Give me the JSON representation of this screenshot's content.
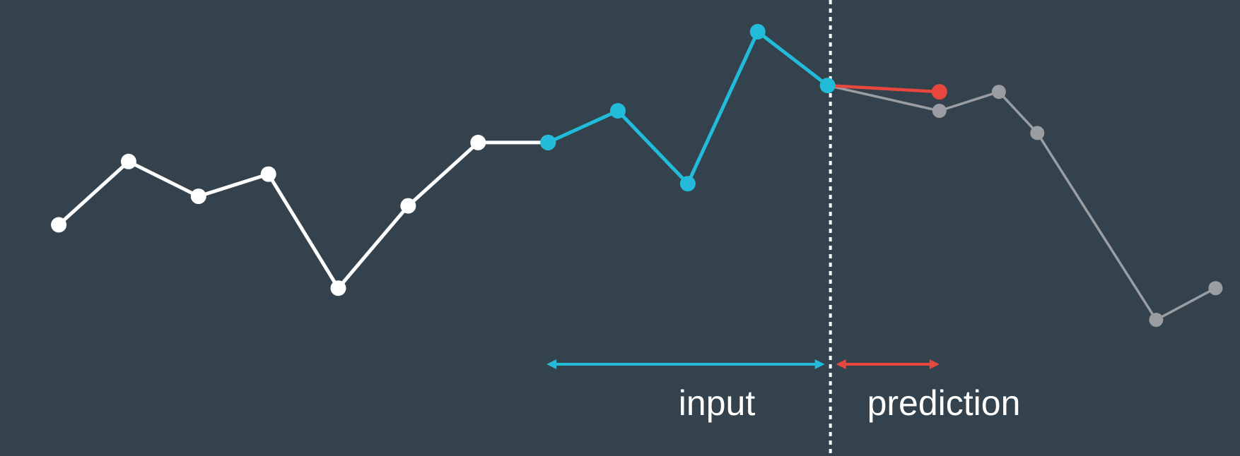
{
  "labels": {
    "input": "input",
    "prediction": "prediction"
  },
  "colors": {
    "background": "#33424c",
    "history": "#ffffff",
    "input": "#22bbd9",
    "prediction": "#e8473f",
    "future": "#9a9ea3",
    "divider": "#ffffff"
  },
  "series": {
    "history": [
      [
        1,
        2.15
      ],
      [
        2,
        3.15
      ],
      [
        3,
        2.6
      ],
      [
        4,
        2.95
      ],
      [
        5,
        1.15
      ],
      [
        6,
        2.45
      ],
      [
        7,
        3.45
      ],
      [
        8,
        3.45
      ]
    ],
    "input": [
      [
        8,
        3.45
      ],
      [
        9,
        3.95
      ],
      [
        10,
        2.8
      ],
      [
        11,
        5.2
      ],
      [
        12,
        4.35
      ]
    ],
    "prediction": [
      [
        12,
        4.35
      ],
      [
        13.6,
        4.25
      ]
    ],
    "future": [
      [
        12,
        4.35
      ],
      [
        13.6,
        3.95
      ],
      [
        14.45,
        4.25
      ],
      [
        15,
        3.6
      ],
      [
        16.7,
        0.65
      ],
      [
        17.55,
        1.15
      ]
    ]
  },
  "spans": {
    "input": [
      8,
      12
    ],
    "prediction": [
      12,
      13.6
    ]
  },
  "divider_x": 12,
  "x_range": [
    0.16,
    17.9
  ],
  "y_range": [
    -1.5,
    5.7
  ]
}
